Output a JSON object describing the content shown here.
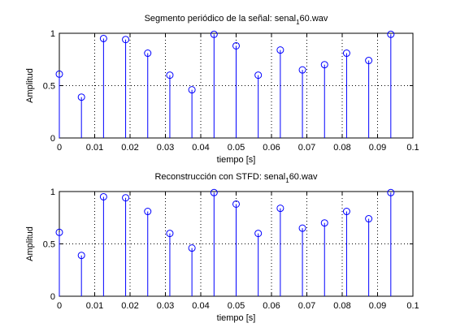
{
  "chart_data": [
    {
      "type": "stem",
      "title": "Segmento periódico de la señal: senal",
      "title_sub": "1",
      "title_suffix": "60.wav",
      "xlabel": "tiempo [s]",
      "ylabel": "Amplitud",
      "xlim": [
        0,
        0.1
      ],
      "ylim": [
        0,
        1
      ],
      "xticks": [
        0,
        0.01,
        0.02,
        0.03,
        0.04,
        0.05,
        0.06,
        0.07,
        0.08,
        0.09,
        0.1
      ],
      "xtick_labels": [
        "0",
        "0.01",
        "0.02",
        "0.03",
        "0.04",
        "0.05",
        "0.06",
        "0.07",
        "0.08",
        "0.09",
        "0.1"
      ],
      "yticks": [
        0,
        0.5,
        1
      ],
      "ytick_labels": [
        "0",
        "0.5",
        "1"
      ],
      "grid": true,
      "color": "#0000ff",
      "x": [
        0,
        0.00625,
        0.0125,
        0.01875,
        0.025,
        0.03125,
        0.0375,
        0.04375,
        0.05,
        0.05625,
        0.0625,
        0.06875,
        0.075,
        0.08125,
        0.0875,
        0.09375
      ],
      "values": [
        0.61,
        0.39,
        0.95,
        0.94,
        0.81,
        0.6,
        0.46,
        0.99,
        0.88,
        0.6,
        0.84,
        0.65,
        0.7,
        0.81,
        0.74,
        0.99
      ]
    },
    {
      "type": "stem",
      "title": "Reconstrucción con STFD: senal",
      "title_sub": "1",
      "title_suffix": "60.wav",
      "xlabel": "tiempo [s]",
      "ylabel": "Amplitud",
      "xlim": [
        0,
        0.1
      ],
      "ylim": [
        0,
        1
      ],
      "xticks": [
        0,
        0.01,
        0.02,
        0.03,
        0.04,
        0.05,
        0.06,
        0.07,
        0.08,
        0.09,
        0.1
      ],
      "xtick_labels": [
        "0",
        "0.01",
        "0.02",
        "0.03",
        "0.04",
        "0.05",
        "0.06",
        "0.07",
        "0.08",
        "0.09",
        "0.1"
      ],
      "yticks": [
        0,
        0.5,
        1
      ],
      "ytick_labels": [
        "0",
        "0.5",
        "1"
      ],
      "grid": true,
      "color": "#0000ff",
      "x": [
        0,
        0.00625,
        0.0125,
        0.01875,
        0.025,
        0.03125,
        0.0375,
        0.04375,
        0.05,
        0.05625,
        0.0625,
        0.06875,
        0.075,
        0.08125,
        0.0875,
        0.09375
      ],
      "values": [
        0.61,
        0.39,
        0.95,
        0.94,
        0.81,
        0.6,
        0.46,
        0.99,
        0.88,
        0.6,
        0.84,
        0.65,
        0.7,
        0.81,
        0.74,
        0.99
      ]
    }
  ]
}
